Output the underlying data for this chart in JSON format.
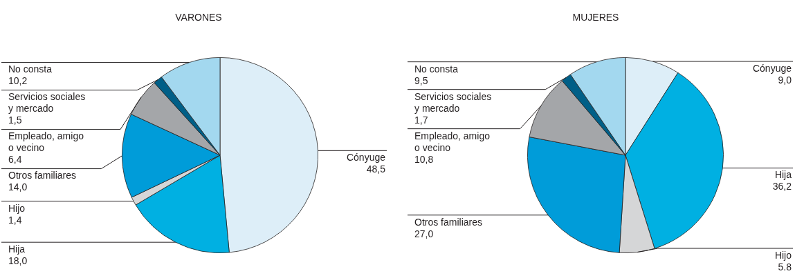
{
  "chart_data": [
    {
      "type": "pie",
      "title": "VARONES",
      "categories": [
        "Cónyuge",
        "Hija",
        "Hijo",
        "Otros familiares",
        "Empleado, amigo\no vecino",
        "Servicios sociales\ny mercado",
        "No consta"
      ],
      "values": [
        48.5,
        18.0,
        1.4,
        14.0,
        6.4,
        1.5,
        10.2
      ],
      "value_labels": [
        "48,5",
        "18,0",
        "1,4",
        "14,0",
        "6,4",
        "1,5",
        "10,2"
      ],
      "colors": [
        "#ddeef8",
        "#00b0e2",
        "#d5d6d7",
        "#009cd9",
        "#a4a6a9",
        "#005f87",
        "#a3d8ef"
      ]
    },
    {
      "type": "pie",
      "title": "MUJERES",
      "categories": [
        "Cónyuge",
        "Hija",
        "Hijo",
        "Otros familiares",
        "Empleado, amigo\no vecino",
        "Servicios sociales\ny mercado",
        "No consta"
      ],
      "values": [
        9.0,
        36.2,
        5.8,
        27.0,
        10.8,
        1.7,
        9.5
      ],
      "value_labels": [
        "9,0",
        "36,2",
        "5.8",
        "27,0",
        "10,8",
        "1,7",
        "9,5"
      ],
      "colors": [
        "#ddeef8",
        "#00b0e2",
        "#d5d6d7",
        "#009cd9",
        "#a4a6a9",
        "#005f87",
        "#a3d8ef"
      ]
    }
  ]
}
